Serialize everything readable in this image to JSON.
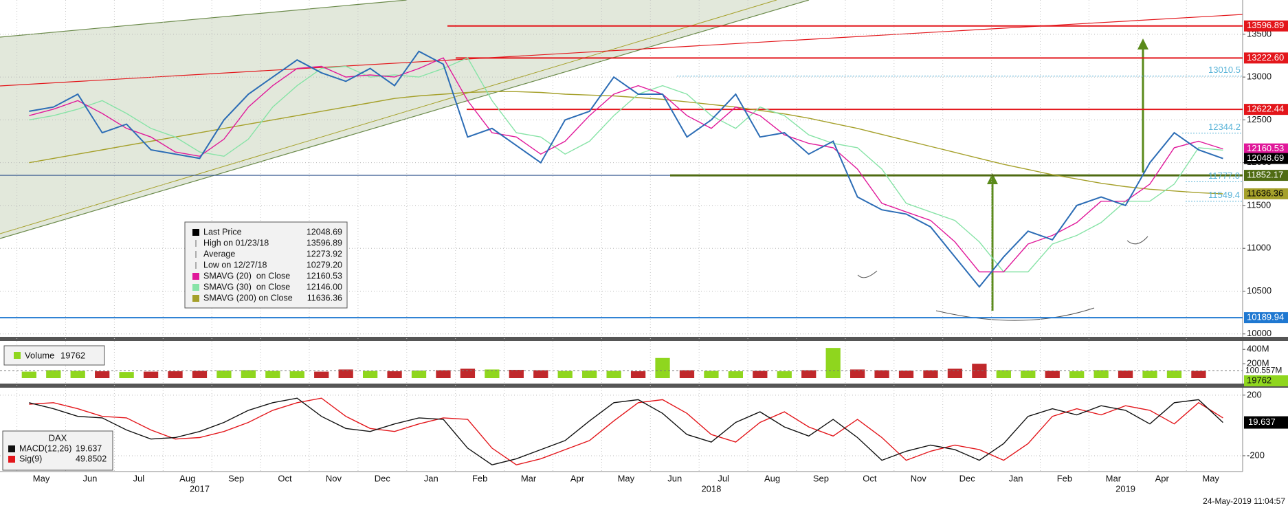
{
  "chart_data": [
    {
      "type": "line",
      "ylim": [
        9950,
        13900
      ],
      "yticks": [
        10000,
        10500,
        11000,
        11500,
        12000,
        12500,
        13000,
        13500
      ],
      "grid": true,
      "series": [
        {
          "name": "Last Price",
          "color": "#2b6cb5",
          "last": "12048.69",
          "values": [
            12600,
            12650,
            12800,
            12350,
            12450,
            12150,
            12100,
            12050,
            12500,
            12800,
            13000,
            13200,
            13050,
            12950,
            13100,
            12900,
            13300,
            13150,
            12300,
            12400,
            12200,
            12000,
            12500,
            12600,
            13000,
            12800,
            12800,
            12300,
            12500,
            12800,
            12300,
            12350,
            12100,
            12250,
            11600,
            11450,
            11400,
            11250,
            10900,
            10550,
            10900,
            11200,
            11100,
            11500,
            11600,
            11500,
            12000,
            12350,
            12150,
            12048.69
          ]
        },
        {
          "name": "SMAVG (20)  on Close",
          "color": "#e0189a",
          "last": "12160.53",
          "values": [
            12550,
            12625,
            12725,
            12575,
            12400,
            12300,
            12125,
            12075,
            12275,
            12650,
            12900,
            13100,
            13125,
            13000,
            13025,
            13000,
            13100,
            13225,
            12725,
            12350,
            12300,
            12100,
            12250,
            12550,
            12800,
            12900,
            12800,
            12550,
            12400,
            12650,
            12550,
            12325,
            12225,
            12175,
            11925,
            11525,
            11425,
            11325,
            11075,
            10725,
            10725,
            11050,
            11150,
            11300,
            11550,
            11550,
            11750,
            12175,
            12250,
            12160.53
          ]
        },
        {
          "name": "SMAVG (30)  on Close",
          "color": "#86e3a6",
          "last": "12146.00",
          "values": [
            12500,
            12550,
            12625,
            12725,
            12575,
            12400,
            12300,
            12125,
            12075,
            12275,
            12650,
            12900,
            13100,
            13125,
            13000,
            13025,
            13000,
            13100,
            13225,
            12725,
            12350,
            12300,
            12100,
            12250,
            12550,
            12800,
            12900,
            12800,
            12550,
            12400,
            12650,
            12550,
            12325,
            12225,
            12175,
            11925,
            11525,
            11425,
            11325,
            11075,
            10725,
            10725,
            11050,
            11150,
            11300,
            11550,
            11550,
            11750,
            12175,
            12146
          ]
        },
        {
          "name": "SMAVG (200) on Close",
          "color": "#a5a02a",
          "last": "11636.36",
          "values": [
            12000,
            12050,
            12100,
            12150,
            12200,
            12250,
            12300,
            12350,
            12400,
            12450,
            12500,
            12550,
            12600,
            12650,
            12700,
            12750,
            12780,
            12800,
            12820,
            12830,
            12830,
            12820,
            12800,
            12790,
            12780,
            12760,
            12740,
            12710,
            12680,
            12650,
            12610,
            12570,
            12520,
            12460,
            12400,
            12330,
            12260,
            12190,
            12120,
            12050,
            11980,
            11920,
            11860,
            11810,
            11760,
            11720,
            11690,
            11670,
            11650,
            11636.36
          ]
        }
      ],
      "stats": [
        {
          "label": "High on 01/23/18",
          "value": "13596.89"
        },
        {
          "label": "Average",
          "value": "12273.92"
        },
        {
          "label": "Low on 12/27/18",
          "value": "10279.20"
        }
      ],
      "levels": [
        {
          "value": 13596.89,
          "label": "13596.89",
          "color": "#e3161b",
          "style": "box"
        },
        {
          "value": 13222.6,
          "label": "13222.60",
          "color": "#e3161b",
          "style": "box"
        },
        {
          "value": 13010.5,
          "label": "13010.5",
          "color": "#5ab4d8",
          "style": "text"
        },
        {
          "value": 12622.44,
          "label": "12622.44",
          "color": "#e3161b",
          "style": "box"
        },
        {
          "value": 12344.2,
          "label": "12344.2",
          "color": "#5ab4d8",
          "style": "text"
        },
        {
          "value": 11852.17,
          "label": "11852.17",
          "color": "#4f6b12",
          "style": "box"
        },
        {
          "value": 11777,
          "label": "11777.0",
          "color": "#5ab4d8",
          "style": "text"
        },
        {
          "value": 11549.4,
          "label": "11549.4",
          "color": "#5ab4d8",
          "style": "text"
        },
        {
          "value": 10189.94,
          "label": "10189.94",
          "color": "#1f78d1",
          "style": "box"
        }
      ]
    },
    {
      "type": "bar",
      "name": "Volume",
      "up_color": "#8fd61e",
      "down_color": "#c0282b",
      "color": "#8fd61e",
      "ylim": [
        0,
        450000000
      ],
      "yticks": [
        {
          "value": 200000000,
          "label": "200M"
        },
        {
          "value": 400000000,
          "label": "400M"
        }
      ],
      "grid": false,
      "average": {
        "value": 100557000,
        "label": "100.557M"
      },
      "values": [
        90000000,
        110000000,
        100000000,
        95000000,
        85000000,
        90000000,
        95000000,
        100000000,
        105000000,
        110000000,
        100000000,
        95000000,
        90000000,
        120000000,
        100000000,
        95000000,
        105000000,
        110000000,
        130000000,
        120000000,
        115000000,
        110000000,
        100000000,
        105000000,
        100000000,
        95000000,
        280000000,
        110000000,
        100000000,
        95000000,
        100000000,
        95000000,
        110000000,
        420000000,
        120000000,
        110000000,
        105000000,
        110000000,
        130000000,
        200000000,
        110000000,
        105000000,
        100000000,
        95000000,
        110000000,
        105000000,
        100000000,
        105000000,
        100000000,
        19762
      ]
    },
    {
      "type": "line",
      "title": "DAX",
      "ylim": [
        -300,
        240
      ],
      "yticks": [
        -200,
        200
      ],
      "grid": true,
      "categories": [
        "May",
        null,
        "Jun",
        null,
        "Jul",
        null,
        "Aug",
        null,
        "Sep",
        null,
        "Oct",
        null,
        "Nov",
        null,
        "Dec",
        null,
        "Jan",
        null,
        "Feb",
        null,
        "Mar",
        null,
        "Apr",
        null,
        "May",
        null,
        "Jun",
        null,
        "Jul",
        null,
        "Aug",
        null,
        "Sep",
        null,
        "Oct",
        null,
        "Nov",
        null,
        "Dec",
        null,
        "Jan",
        null,
        "Feb",
        null,
        "Mar",
        null,
        "Apr",
        null,
        "May",
        null
      ],
      "year_labels": [
        null,
        null,
        null,
        null,
        null,
        null,
        null,
        "2017",
        null,
        null,
        null,
        null,
        null,
        null,
        null,
        null,
        null,
        null,
        null,
        null,
        null,
        null,
        null,
        null,
        null,
        null,
        null,
        null,
        "2018",
        null,
        null,
        null,
        null,
        null,
        null,
        null,
        null,
        null,
        null,
        null,
        null,
        null,
        null,
        null,
        null,
        "2019",
        null,
        null,
        null,
        null
      ],
      "series": [
        {
          "name": "MACD(12,26)",
          "color": "#111111",
          "values": [
            150,
            110,
            60,
            50,
            -30,
            -90,
            -80,
            -40,
            20,
            100,
            150,
            180,
            60,
            -20,
            -40,
            10,
            50,
            40,
            -150,
            -260,
            -220,
            -160,
            -100,
            30,
            150,
            170,
            80,
            -60,
            -110,
            20,
            90,
            -10,
            -70,
            40,
            -80,
            -230,
            -170,
            -130,
            -160,
            -230,
            -120,
            60,
            110,
            70,
            130,
            100,
            10,
            150,
            170,
            19.637
          ]
        },
        {
          "name": "Sig(9)",
          "color": "#e3161b",
          "values": [
            140,
            150,
            110,
            60,
            50,
            -30,
            -90,
            -80,
            -40,
            20,
            100,
            150,
            180,
            60,
            -20,
            -40,
            10,
            50,
            40,
            -150,
            -260,
            -220,
            -160,
            -100,
            30,
            150,
            170,
            80,
            -60,
            -110,
            20,
            90,
            -10,
            -70,
            40,
            -80,
            -230,
            -170,
            -130,
            -160,
            -230,
            -120,
            60,
            110,
            70,
            130,
            100,
            10,
            150,
            49.8502
          ]
        }
      ]
    }
  ],
  "footer": {
    "timestamp": "24-May-2019 11:04:57"
  }
}
